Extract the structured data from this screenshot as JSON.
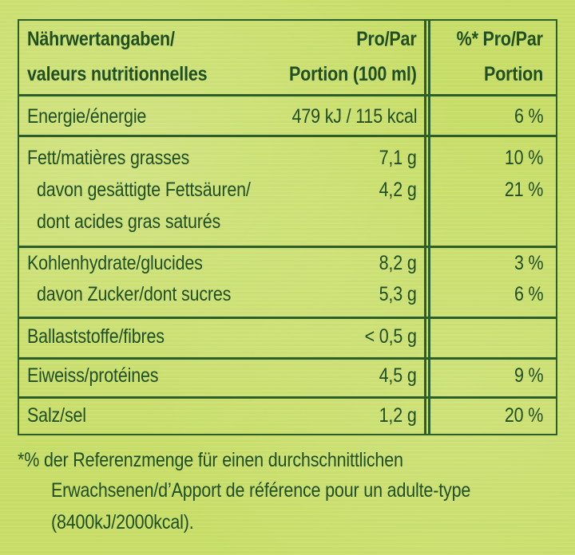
{
  "header": {
    "col1_line1": "Nährwertangaben/",
    "col1_line2": "valeurs nutritionnelles",
    "col2_line1": "Pro/Par",
    "col2_line2": "Portion (100 ml)",
    "col3_line1": "%* Pro/Par",
    "col3_line2": "Portion"
  },
  "rows": [
    {
      "name": "Energie/énergie",
      "value": "479 kJ / 115 kcal",
      "percent": "6 %"
    },
    {
      "name": "Fett/matières grasses",
      "value": "7,1 g",
      "percent": "10 %"
    },
    {
      "name": "davon gesättigte Fettsäuren/",
      "name2": "dont acides gras saturés",
      "value": "4,2 g",
      "percent": "21 %"
    },
    {
      "name": "Kohlenhydrate/glucides",
      "value": "8,2 g",
      "percent": "3 %"
    },
    {
      "name": "davon Zucker/dont sucres",
      "value": "5,3 g",
      "percent": "6 %"
    },
    {
      "name": "Ballaststoffe/fibres",
      "value": "< 0,5 g",
      "percent": ""
    },
    {
      "name": "Eiweiss/protéines",
      "value": "4,5 g",
      "percent": "9 %"
    },
    {
      "name": "Salz/sel",
      "value": "1,2 g",
      "percent": "20 %"
    }
  ],
  "footnote": {
    "line1": "*% der Referenzmenge für einen durchschnittlichen",
    "line2": "Erwachsenen/d’Apport de référence pour un adulte-type",
    "line3": "(8400kJ/2000kcal)."
  }
}
